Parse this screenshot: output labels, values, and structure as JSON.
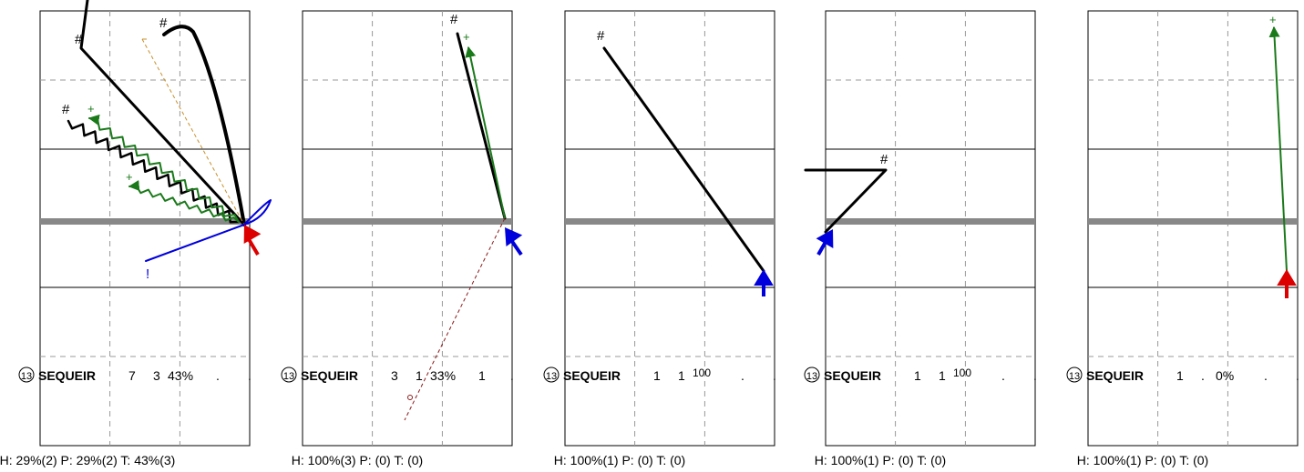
{
  "panels": [
    {
      "num": "13",
      "name": "SEQUEIR",
      "c1": "7",
      "c2": "3",
      "pct": "43%",
      "d1": ".",
      "d2": ".",
      "footer": "H: 29%(2)  P: 29%(2)  T: 43%(3)"
    },
    {
      "num": "13",
      "name": "SEQUEIR",
      "c1": "3",
      "c2": "1",
      "pct": "33%",
      "d1": "1",
      "d2": ".",
      "footer": "H: 100%(3)  P: (0)  T: (0)"
    },
    {
      "num": "13",
      "name": "SEQUEIR",
      "c1": "1",
      "c2": "1",
      "pct": "100",
      "d1": ".",
      "d2": ".",
      "footer": "H: 100%(1)  P: (0)  T: (0)"
    },
    {
      "num": "13",
      "name": "SEQUEIR",
      "c1": "1",
      "c2": "1",
      "pct": "100",
      "d1": ".",
      "d2": ".",
      "footer": "H: 100%(1)  P: (0)  T: (0)"
    },
    {
      "num": "13",
      "name": "SEQUEIR",
      "c1": "1",
      "c2": ".",
      "pct": "0%",
      "d1": ".",
      "d2": ".",
      "footer": "H: 100%(1)  P: (0)  T: (0)"
    }
  ],
  "chart_data": {
    "type": "other",
    "markers": {
      "start": "#",
      "target": "+",
      "alert": "!"
    },
    "colors": {
      "route": "#000000",
      "pass": "#1a7a1a",
      "scramble": "#0000dd",
      "run": "#dd0000",
      "midline": "#888888",
      "dash_orange": "#c8902a",
      "dash_red": "#8b1a1a"
    }
  }
}
